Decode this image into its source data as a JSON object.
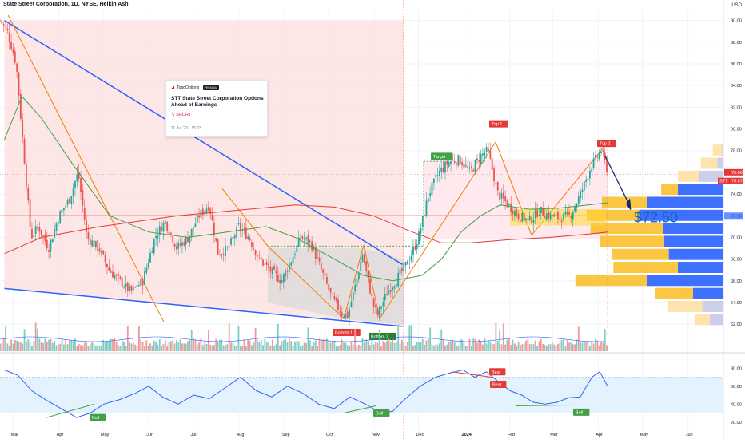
{
  "header": {
    "title": "State Street Corporation, 1D, NYSE, Heikin Ashi"
  },
  "currency": "USD",
  "idea_card": {
    "brand": "TopgOptions",
    "badge": "PREMIUM",
    "title": "STT State Street Corporation Options Ahead of Earnings",
    "direction": "SHORT",
    "date": "11 Jul '23 · 15:03"
  },
  "price_labels": {
    "current_a": "75.80",
    "current_b": "75.67",
    "ticker": "STT"
  },
  "target_price_text": "$72.50",
  "annotations": {
    "target": "Target",
    "top1": "Top 1",
    "top2": "Top 2",
    "bottom1": "Bottom 1",
    "bottom2": "Bottom 2",
    "bear": "Bear",
    "bull": "Bull"
  },
  "colors": {
    "up": "#26a69a",
    "down": "#ef5350",
    "wedge_line": "#2962ff",
    "pattern_line": "#f57c00",
    "ma_green": "#43a047",
    "ma_red": "#e53935",
    "rsi_line": "#2962ff",
    "rsi_band": "#e3f2fd",
    "profile_blue": "#2962ff",
    "profile_yellow": "#fbc02d"
  },
  "chart_data": [
    {
      "type": "candlestick",
      "title": "State Street Corporation, 1D, NYSE, Heikin Ashi",
      "x_ticks": [
        "Mar",
        "Apr",
        "May",
        "Jun",
        "Jul",
        "Aug",
        "Sep",
        "Oct",
        "Nov",
        "Dec",
        "2024",
        "Feb",
        "Mar",
        "Apr",
        "May",
        "Jun"
      ],
      "y_ticks": [
        62.0,
        64.0,
        66.0,
        68.0,
        70.0,
        72.0,
        74.0,
        76.0,
        78.0,
        80.0,
        82.0,
        84.0,
        86.0,
        88.0,
        90.0
      ],
      "ylim": [
        61.5,
        91.0
      ],
      "close_path": [
        [
          "Feb 20 '23",
          90.0
        ],
        [
          "Feb 25 '23",
          89.0
        ],
        [
          "Mar 3 '23",
          86.0
        ],
        [
          "Mar 8 '23",
          78.0
        ],
        [
          "Mar 13 '23",
          70.0
        ],
        [
          "Mar 18 '23",
          71.0
        ],
        [
          "Mar 25 '23",
          69.0
        ],
        [
          "Apr 1 '23",
          72.0
        ],
        [
          "Apr 8 '23",
          73.5
        ],
        [
          "Apr 14 '23",
          76.0
        ],
        [
          "Apr 20 '23",
          70.0
        ],
        [
          "Apr 28 '23",
          69.0
        ],
        [
          "May 5 '23",
          67.0
        ],
        [
          "May 12 '23",
          66.0
        ],
        [
          "May 20 '23",
          65.0
        ],
        [
          "May 28 '23",
          66.0
        ],
        [
          "Jun 5 '23",
          70.0
        ],
        [
          "Jun 12 '23",
          71.5
        ],
        [
          "Jun 20 '23",
          69.0
        ],
        [
          "Jun 28 '23",
          70.0
        ],
        [
          "Jul 5 '23",
          72.0
        ],
        [
          "Jul 12 '23",
          73.0
        ],
        [
          "Jul 18 '23",
          68.5
        ],
        [
          "Jul 25 '23",
          69.0
        ],
        [
          "Aug 1 '23",
          71.0
        ],
        [
          "Aug 8 '23",
          70.0
        ],
        [
          "Aug 15 '23",
          68.0
        ],
        [
          "Aug 22 '23",
          67.0
        ],
        [
          "Aug 30 '23",
          66.0
        ],
        [
          "Sep 6 '23",
          68.0
        ],
        [
          "Sep 12 '23",
          70.0
        ],
        [
          "Sep 19 '23",
          69.5
        ],
        [
          "Sep 26 '23",
          67.0
        ],
        [
          "Oct 3 '23",
          64.5
        ],
        [
          "Oct 10 '23",
          63.0
        ],
        [
          "Oct 14 '23",
          62.8
        ],
        [
          "Oct 20 '23",
          66.0
        ],
        [
          "Oct 24 '23",
          68.5
        ],
        [
          "Oct 31 '23",
          64.0
        ],
        [
          "Nov 3 '23",
          62.8
        ],
        [
          "Nov 10 '23",
          65.0
        ],
        [
          "Nov 18 '23",
          66.5
        ],
        [
          "Nov 25 '23",
          68.0
        ],
        [
          "Dec 1 '23",
          70.0
        ],
        [
          "Dec 8 '23",
          74.0
        ],
        [
          "Dec 15 '23",
          76.0
        ],
        [
          "Dec 22 '23",
          77.0
        ],
        [
          "Dec 29 '23",
          77.2
        ],
        [
          "Jan 5 '24",
          76.0
        ],
        [
          "Jan 12 '24",
          77.5
        ],
        [
          "Jan 17 '24",
          78.0
        ],
        [
          "Jan 24 '24",
          74.0
        ],
        [
          "Jan 31 '24",
          73.0
        ],
        [
          "Feb 7 '24",
          72.0
        ],
        [
          "Feb 14 '24",
          71.5
        ],
        [
          "Feb 21 '24",
          72.5
        ],
        [
          "Feb 28 '24",
          72.0
        ],
        [
          "Mar 6 '24",
          71.8
        ],
        [
          "Mar 13 '24",
          72.0
        ],
        [
          "Mar 20 '24",
          74.0
        ],
        [
          "Mar 27 '24",
          76.5
        ],
        [
          "Apr 3 '24",
          78.0
        ],
        [
          "Apr 8 '24",
          75.8
        ]
      ],
      "series": [
        {
          "name": "",
          "kind": "moving_average_green",
          "values": [
            [
              1,
              79.0
            ],
            [
              10,
              83.0
            ],
            [
              20,
              81.0
            ],
            [
              35,
              77.0
            ],
            [
              55,
              72.0
            ],
            [
              75,
              70.5
            ],
            [
              95,
              70.0
            ],
            [
              115,
              70.5
            ],
            [
              135,
              71.0
            ],
            [
              150,
              70.0
            ],
            [
              170,
              68.0
            ],
            [
              185,
              66.5
            ],
            [
              200,
              66.0
            ],
            [
              215,
              66.5
            ],
            [
              225,
              68.0
            ],
            [
              235,
              70.5
            ],
            [
              245,
              72.0
            ],
            [
              255,
              73.0
            ],
            [
              270,
              72.6
            ],
            [
              285,
              72.7
            ],
            [
              300,
              73.0
            ],
            [
              310,
              73.2
            ]
          ]
        },
        {
          "name": "",
          "kind": "moving_average_red",
          "values": [
            [
              1,
              68.5
            ],
            [
              20,
              70.0
            ],
            [
              50,
              71.0
            ],
            [
              90,
              72.0
            ],
            [
              120,
              72.5
            ],
            [
              150,
              73.0
            ],
            [
              170,
              72.8
            ],
            [
              190,
              72.0
            ],
            [
              210,
              70.5
            ],
            [
              225,
              69.5
            ],
            [
              240,
              69.5
            ],
            [
              260,
              69.8
            ],
            [
              280,
              70.0
            ],
            [
              300,
              70.3
            ],
            [
              310,
              70.5
            ]
          ]
        }
      ],
      "drawings": {
        "falling_wedge_upper": [
          [
            1,
            90.0
          ],
          [
            205,
            67.5
          ]
        ],
        "falling_wedge_lower": [
          [
            1,
            65.3
          ],
          [
            205,
            61.8
          ]
        ],
        "current_price_line": 72.0,
        "target_price": 72.5,
        "target_box_top": 77.0
      },
      "volume_profile_levels": [
        {
          "price": 78.0,
          "blue": 2,
          "yellow": 12
        },
        {
          "price": 76.8,
          "blue": 8,
          "yellow": 22
        },
        {
          "price": 75.6,
          "blue": 32,
          "yellow": 28
        },
        {
          "price": 74.4,
          "blue": 60,
          "yellow": 22
        },
        {
          "price": 73.2,
          "blue": 100,
          "yellow": 60
        },
        {
          "price": 72.0,
          "blue": 110,
          "yellow": 70
        },
        {
          "price": 70.8,
          "blue": 80,
          "yellow": 95
        },
        {
          "price": 69.6,
          "blue": 78,
          "yellow": 85
        },
        {
          "price": 68.4,
          "blue": 72,
          "yellow": 75
        },
        {
          "price": 67.2,
          "blue": 60,
          "yellow": 85
        },
        {
          "price": 66.0,
          "blue": 100,
          "yellow": 95
        },
        {
          "price": 64.8,
          "blue": 40,
          "yellow": 50
        },
        {
          "price": 63.6,
          "blue": 28,
          "yellow": 45
        },
        {
          "price": 62.4,
          "blue": 18,
          "yellow": 20
        }
      ]
    },
    {
      "type": "line",
      "title": "",
      "y_ticks": [
        20.0,
        40.0,
        60.0,
        80.0
      ],
      "ylim": [
        10,
        90
      ],
      "band": [
        30,
        70
      ],
      "series": [
        {
          "name": "",
          "values": [
            [
              1,
              78
            ],
            [
              8,
              72
            ],
            [
              15,
              55
            ],
            [
              22,
              45
            ],
            [
              30,
              35
            ],
            [
              38,
              25
            ],
            [
              45,
              30
            ],
            [
              52,
              40
            ],
            [
              60,
              45
            ],
            [
              68,
              52
            ],
            [
              75,
              60
            ],
            [
              82,
              48
            ],
            [
              90,
              40
            ],
            [
              98,
              50
            ],
            [
              106,
              46
            ],
            [
              114,
              58
            ],
            [
              122,
              70
            ],
            [
              130,
              55
            ],
            [
              138,
              48
            ],
            [
              146,
              60
            ],
            [
              154,
              52
            ],
            [
              162,
              40
            ],
            [
              170,
              35
            ],
            [
              178,
              48
            ],
            [
              186,
              40
            ],
            [
              194,
              30
            ],
            [
              200,
              32
            ],
            [
              206,
              45
            ],
            [
              214,
              60
            ],
            [
              222,
              70
            ],
            [
              230,
              75
            ],
            [
              236,
              78
            ],
            [
              242,
              70
            ],
            [
              248,
              76
            ],
            [
              254,
              65
            ],
            [
              260,
              55
            ],
            [
              266,
              50
            ],
            [
              272,
              42
            ],
            [
              278,
              40
            ],
            [
              284,
              42
            ],
            [
              290,
              47
            ],
            [
              296,
              48
            ],
            [
              302,
              70
            ],
            [
              306,
              76
            ],
            [
              310,
              60
            ]
          ]
        }
      ]
    }
  ]
}
